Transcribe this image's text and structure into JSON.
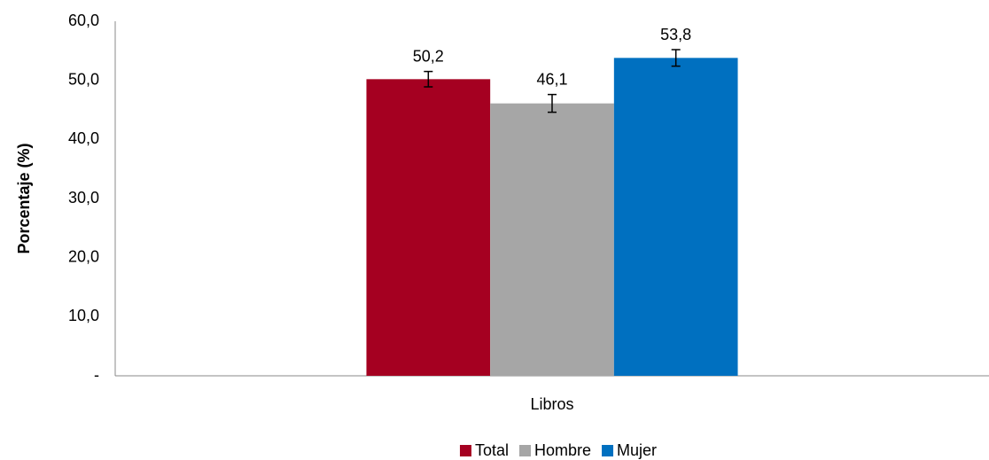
{
  "chart_data": {
    "type": "bar",
    "y_label": "Porcentaje (%)",
    "categories": [
      "Libros"
    ],
    "series": [
      {
        "name": "Total",
        "color": "#a50021",
        "values": [
          50.2
        ],
        "value_labels": [
          "50,2"
        ],
        "errors": [
          1.3
        ]
      },
      {
        "name": "Hombre",
        "color": "#a6a6a6",
        "values": [
          46.1
        ],
        "value_labels": [
          "46,1"
        ],
        "errors": [
          1.5
        ]
      },
      {
        "name": "Mujer",
        "color": "#0070c0",
        "values": [
          53.8
        ],
        "value_labels": [
          "53,8"
        ],
        "errors": [
          1.4
        ]
      }
    ],
    "ylim": [
      0,
      60
    ],
    "yticks": [
      {
        "value": 0,
        "label": "-"
      },
      {
        "value": 10,
        "label": "10,0"
      },
      {
        "value": 20,
        "label": "20,0"
      },
      {
        "value": 30,
        "label": "30,0"
      },
      {
        "value": 40,
        "label": "40,0"
      },
      {
        "value": 50,
        "label": "50,0"
      },
      {
        "value": 60,
        "label": "60,0"
      }
    ],
    "grid": false,
    "legend": "bottom"
  }
}
